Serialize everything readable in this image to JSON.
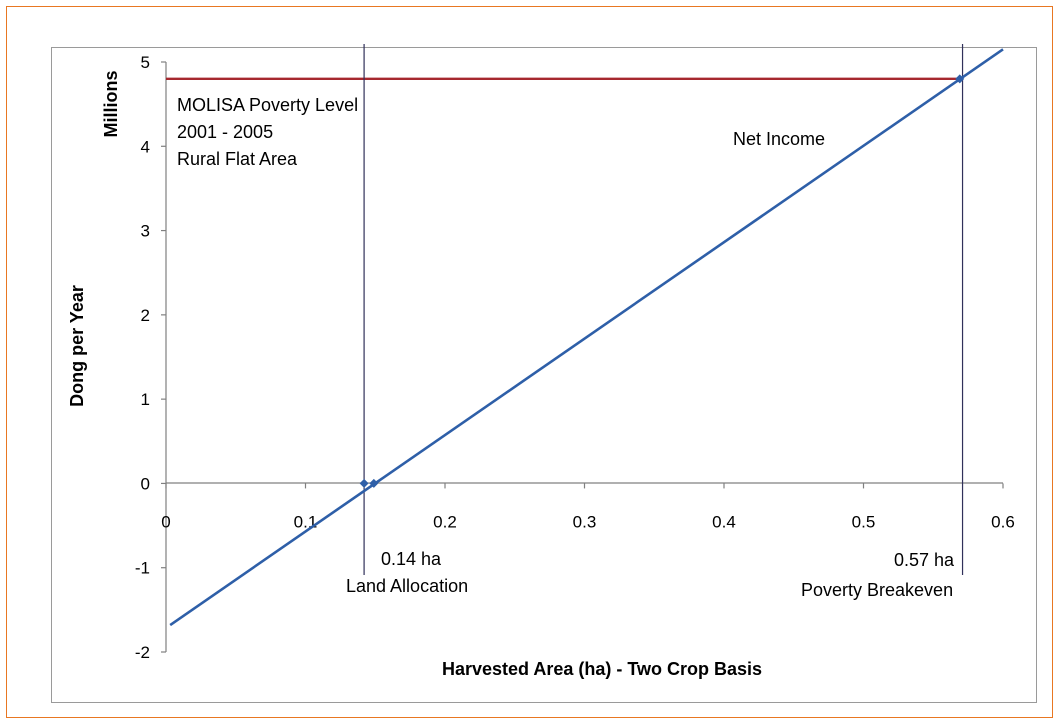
{
  "chart_data": {
    "type": "line",
    "xlabel": "Harvested Area (ha) - Two Crop Basis",
    "ylabel": "Dong per Year",
    "yunit_label": "Millions",
    "xlim": [
      0,
      0.6
    ],
    "ylim": [
      -2,
      5
    ],
    "xticks": [
      "0",
      "0.1",
      "0.2",
      "0.3",
      "0.4",
      "0.5",
      "0.6"
    ],
    "yticks": [
      "-2",
      "-1",
      "0",
      "1",
      "2",
      "3",
      "4",
      "5"
    ],
    "grid": false,
    "series": [
      {
        "name": "Net Income",
        "color": "#2e5fa8",
        "x": [
          0.003,
          0.6
        ],
        "y": [
          -1.68,
          5.15
        ],
        "markers": [
          {
            "x": 0.142,
            "y": 0.0
          },
          {
            "x": 0.149,
            "y": 0.0
          },
          {
            "x": 0.569,
            "y": 4.8
          }
        ]
      }
    ],
    "reference_lines": [
      {
        "orientation": "horizontal",
        "y": 4.8,
        "color": "#a6282f",
        "label": [
          "MOLISA Poverty Level",
          "2001 - 2005",
          "Rural Flat Area"
        ]
      },
      {
        "orientation": "vertical",
        "x": 0.142,
        "color": "#30305a",
        "label": [
          "0.14 ha",
          "Land Allocation"
        ]
      },
      {
        "orientation": "vertical",
        "x": 0.571,
        "color": "#30305a",
        "label": [
          "0.57 ha",
          "Poverty Breakeven"
        ]
      }
    ]
  }
}
